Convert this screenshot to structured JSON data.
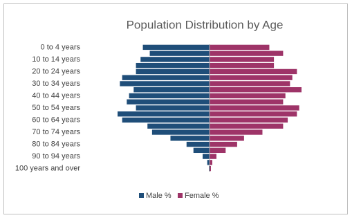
{
  "chart_data": {
    "type": "pyramid",
    "title": "Population Distribution by Age",
    "categories": [
      "0 to 4 years",
      null,
      "10 to 14 years",
      null,
      "20 to 24 years",
      null,
      "30 to 34 years",
      null,
      "40 to 44 years",
      null,
      "50 to 54 years",
      null,
      "60 to 64 years",
      null,
      "70 to 74 years",
      null,
      "80 to 84 years",
      null,
      "90 to 94 years",
      null,
      "100 years and over"
    ],
    "series": [
      {
        "name": "Male %",
        "color": "#1f4e79",
        "values": [
          2.9,
          2.6,
          3.0,
          3.2,
          3.2,
          3.8,
          3.9,
          3.3,
          3.5,
          3.6,
          3.2,
          4.0,
          3.8,
          2.7,
          2.5,
          1.7,
          1.0,
          0.7,
          0.3,
          0.1,
          0.03
        ]
      },
      {
        "name": "Female %",
        "color": "#9e3468",
        "values": [
          2.6,
          3.2,
          2.8,
          2.8,
          3.8,
          3.6,
          3.5,
          4.0,
          3.3,
          3.2,
          3.9,
          3.8,
          3.4,
          3.2,
          2.3,
          1.5,
          1.2,
          0.7,
          0.3,
          0.12,
          0.06
        ]
      }
    ]
  }
}
